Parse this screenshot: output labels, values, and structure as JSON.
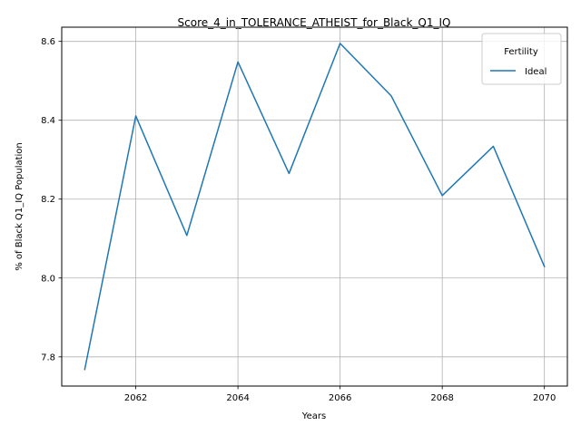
{
  "chart_data": {
    "type": "line",
    "title": "Score_4_in_TOLERANCE_ATHEIST_for_Black_Q1_IQ",
    "xlabel": "Years",
    "ylabel": "% of Black Q1_IQ Population",
    "xlim": [
      2060.55,
      2070.45
    ],
    "ylim": [
      7.726,
      8.636
    ],
    "x_ticks": [
      2062,
      2064,
      2066,
      2068,
      2070
    ],
    "y_ticks": [
      7.8,
      8.0,
      8.2,
      8.4,
      8.6
    ],
    "x_tick_labels": [
      "2062",
      "2064",
      "2066",
      "2068",
      "2070"
    ],
    "y_tick_labels": [
      "7.8",
      "8.0",
      "8.2",
      "8.4",
      "8.6"
    ],
    "grid": true,
    "legend": {
      "title": "Fertility",
      "placement": "top-right"
    },
    "series": [
      {
        "name": "Ideal",
        "color": "#1f77b4",
        "x": [
          2061,
          2062,
          2063,
          2064,
          2065,
          2066,
          2067,
          2068,
          2069,
          2070
        ],
        "y": [
          7.768,
          8.411,
          8.108,
          8.548,
          8.265,
          8.595,
          8.462,
          8.209,
          8.334,
          8.029
        ]
      }
    ]
  }
}
